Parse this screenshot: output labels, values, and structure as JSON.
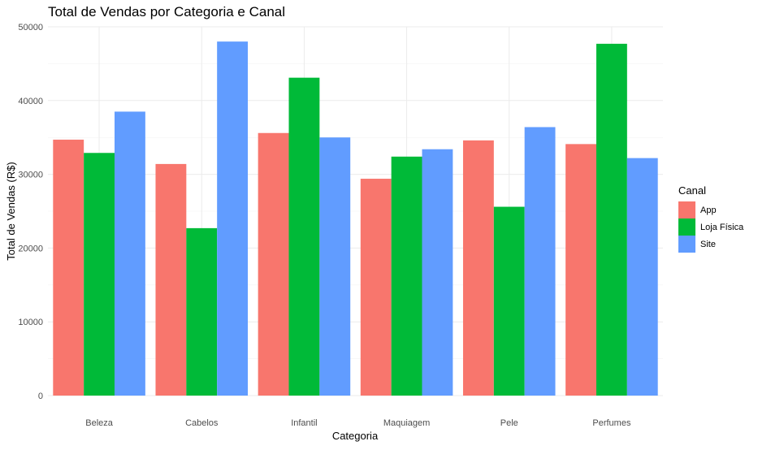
{
  "chart_data": {
    "type": "bar",
    "title": "Total de Vendas por Categoria e Canal",
    "xlabel": "Categoria",
    "ylabel": "Total de Vendas (R$)",
    "categories": [
      "Beleza",
      "Cabelos",
      "Infantil",
      "Maquiagem",
      "Pele",
      "Perfumes"
    ],
    "series": [
      {
        "name": "App",
        "color": "#F8766D",
        "values": [
          34700,
          31400,
          35600,
          29400,
          34600,
          34100
        ]
      },
      {
        "name": "Loja Física",
        "color": "#00BA38",
        "values": [
          32900,
          22700,
          43100,
          32400,
          25600,
          47700
        ]
      },
      {
        "name": "Site",
        "color": "#619CFF",
        "values": [
          38500,
          48000,
          35000,
          33400,
          36400,
          32200
        ]
      }
    ],
    "ylim": [
      0,
      50000
    ],
    "yticks": [
      0,
      10000,
      20000,
      30000,
      40000,
      50000
    ],
    "ytick_labels": [
      "0",
      "10000",
      "20000",
      "30000",
      "40000",
      "50000"
    ],
    "grid": true,
    "legend": {
      "title": "Canal",
      "position": "right"
    }
  }
}
